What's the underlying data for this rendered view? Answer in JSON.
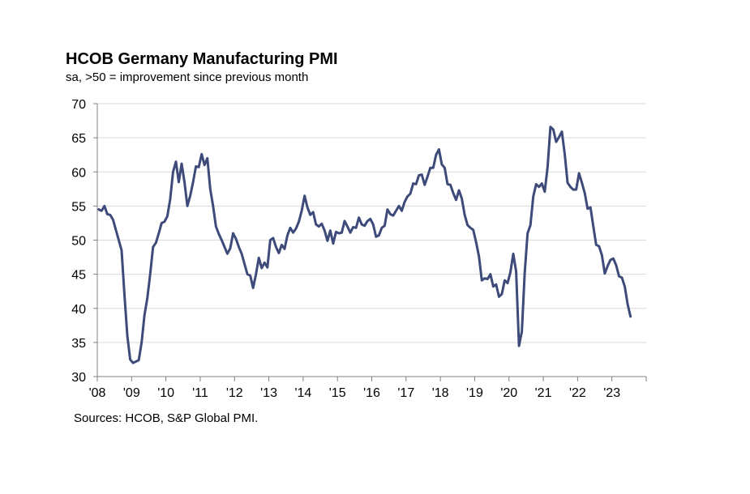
{
  "chart_data": {
    "type": "line",
    "title": "HCOB Germany Manufacturing PMI",
    "subtitle": "sa, >50 = improvement since previous month",
    "source": "Sources: HCOB, S&P Global PMI.",
    "xlabel": "",
    "ylabel": "",
    "ylim": [
      30,
      70
    ],
    "yticks": [
      "30",
      "35",
      "40",
      "45",
      "50",
      "55",
      "60",
      "65",
      "70"
    ],
    "xticks": [
      "'08",
      "'09",
      "'10",
      "'11",
      "'12",
      "'13",
      "'14",
      "'15",
      "'16",
      "'17",
      "'18",
      "'19",
      "'20",
      "'21",
      "'22",
      "'23"
    ],
    "grid": true,
    "line_color": "#3d4a7a",
    "series": [
      {
        "name": "HCOB Germany Manufacturing PMI",
        "start": "2008-01",
        "values": [
          54.5,
          54.3,
          55.0,
          53.8,
          53.7,
          53.0,
          51.5,
          50.0,
          48.5,
          42.0,
          36.0,
          32.5,
          32.0,
          32.2,
          32.4,
          35.0,
          39.0,
          41.5,
          45.0,
          49.0,
          49.6,
          51.0,
          52.5,
          52.7,
          53.5,
          56.0,
          60.0,
          61.5,
          58.5,
          61.2,
          58.5,
          55.0,
          56.5,
          58.5,
          60.8,
          60.7,
          62.6,
          61.0,
          62.0,
          57.5,
          55.0,
          52.0,
          50.9,
          50.0,
          49.0,
          48.0,
          48.8,
          51.0,
          50.2,
          49.0,
          48.0,
          46.5,
          45.0,
          44.8,
          43.0,
          45.0,
          47.4,
          45.9,
          46.7,
          46.0,
          50.0,
          50.3,
          49.0,
          48.1,
          49.3,
          48.7,
          50.7,
          51.8,
          51.1,
          51.7,
          52.7,
          54.3,
          56.5,
          54.8,
          53.7,
          54.1,
          52.3,
          52.0,
          52.4,
          51.4,
          49.9,
          51.4,
          49.5,
          51.2,
          51.0,
          51.1,
          52.8,
          52.0,
          51.1,
          51.9,
          51.8,
          53.3,
          52.3,
          52.1,
          52.8,
          53.1,
          52.3,
          50.5,
          50.7,
          51.8,
          52.1,
          54.5,
          53.8,
          53.6,
          54.3,
          55.0,
          54.3,
          55.6,
          56.4,
          56.8,
          58.3,
          58.2,
          59.5,
          59.6,
          58.1,
          59.3,
          60.6,
          60.6,
          62.5,
          63.3,
          61.1,
          60.6,
          58.2,
          58.1,
          56.9,
          55.9,
          57.3,
          56.1,
          53.7,
          52.2,
          51.8,
          51.5,
          49.7,
          47.6,
          44.1,
          44.4,
          44.3,
          45.0,
          43.2,
          43.5,
          41.7,
          42.1,
          44.1,
          43.7,
          45.3,
          48.0,
          45.4,
          34.5,
          36.6,
          45.2,
          51.0,
          52.2,
          56.4,
          58.2,
          57.8,
          58.3,
          57.1,
          60.7,
          66.6,
          66.2,
          64.4,
          65.1,
          65.9,
          62.6,
          58.4,
          57.8,
          57.4,
          57.4,
          59.8,
          58.4,
          56.9,
          54.6,
          54.8,
          52.0,
          49.3,
          49.1,
          47.8,
          45.1,
          46.2,
          47.1,
          47.3,
          46.3,
          44.7,
          44.5,
          43.2,
          40.6,
          38.8
        ]
      }
    ]
  }
}
